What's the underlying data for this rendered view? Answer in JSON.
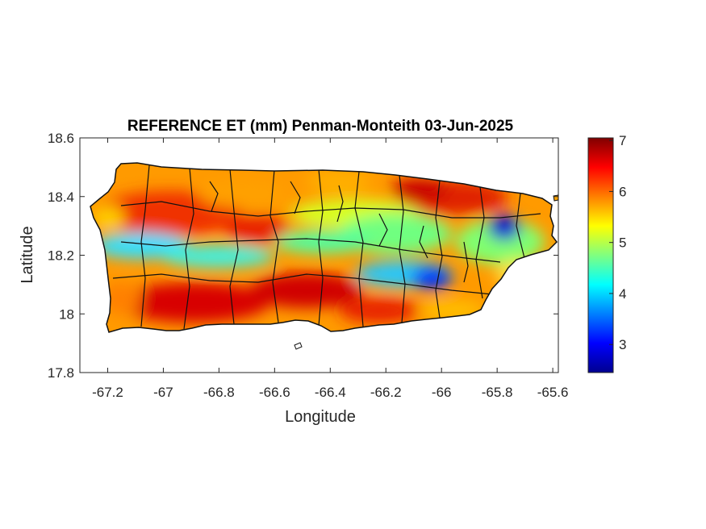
{
  "chart_data": {
    "type": "heatmap",
    "title": "REFERENCE ET (mm) Penman-Monteith 03-Jun-2025",
    "xlabel": "Longitude",
    "ylabel": "Latitude",
    "xlim": [
      -67.3,
      -65.58
    ],
    "ylim": [
      17.8,
      18.6
    ],
    "x_ticks": [
      "-67.2",
      "-67",
      "-66.8",
      "-66.6",
      "-66.4",
      "-66.2",
      "-66",
      "-65.8",
      "-65.6"
    ],
    "x_tick_values": [
      -67.2,
      -67.0,
      -66.8,
      -66.6,
      -66.4,
      -66.2,
      -66.0,
      -65.8,
      -65.6
    ],
    "y_ticks": [
      "17.8",
      "18",
      "18.2",
      "18.4",
      "18.6"
    ],
    "y_tick_values": [
      17.8,
      18.0,
      18.2,
      18.4,
      18.6
    ],
    "colorbar": {
      "colormap": "jet",
      "range": [
        2.45,
        7.05
      ],
      "ticks": [
        "3",
        "4",
        "5",
        "6",
        "7"
      ],
      "tick_values": [
        3,
        4,
        5,
        6,
        7
      ]
    },
    "grid": false,
    "field_description_points": [
      {
        "lon": -67.0,
        "lat": 18.22,
        "value": 4.2
      },
      {
        "lon": -66.8,
        "lat": 18.2,
        "value": 4.5
      },
      {
        "lon": -66.05,
        "lat": 18.12,
        "value": 3.4
      },
      {
        "lon": -65.8,
        "lat": 18.3,
        "value": 3.1
      },
      {
        "lon": -66.9,
        "lat": 18.05,
        "value": 6.8
      },
      {
        "lon": -66.5,
        "lat": 18.1,
        "value": 6.6
      },
      {
        "lon": -66.3,
        "lat": 18.43,
        "value": 6.6
      },
      {
        "lon": -66.05,
        "lat": 18.43,
        "value": 6.7
      },
      {
        "lon": -66.45,
        "lat": 18.28,
        "value": 5.0
      }
    ]
  }
}
